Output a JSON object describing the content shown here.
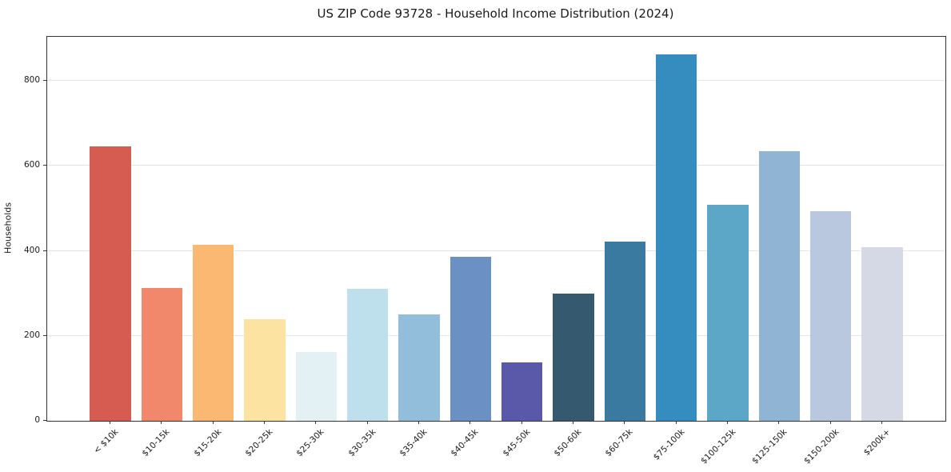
{
  "title": "US ZIP Code 93728 - Household Income Distribution (2024)",
  "chart_data": {
    "type": "bar",
    "title": "US ZIP Code 93728 - Household Income Distribution (2024)",
    "xlabel": "",
    "ylabel": "Households",
    "categories": [
      "< $10k",
      "$10-15k",
      "$15-20k",
      "$20-25k",
      "$25-30k",
      "$30-35k",
      "$35-40k",
      "$40-45k",
      "$45-50k",
      "$50-60k",
      "$60-75k",
      "$75-100k",
      "$100-125k",
      "$125-150k",
      "$150-200k",
      "$200k+"
    ],
    "values": [
      646,
      313,
      415,
      239,
      162,
      311,
      251,
      387,
      137,
      299,
      421,
      862,
      508,
      635,
      494,
      408
    ],
    "bar_colors": [
      "#d65c51",
      "#f1886c",
      "#fab873",
      "#fce3a2",
      "#e4f1f4",
      "#bde0ec",
      "#93bedb",
      "#6b90c4",
      "#5a58a9",
      "#35596f",
      "#3a7aa1",
      "#348cbf",
      "#5ca6c8",
      "#90b4d4",
      "#b9c8df",
      "#d5d8e5"
    ],
    "yticks": [
      0,
      200,
      400,
      600,
      800
    ],
    "ylim": [
      0,
      904
    ],
    "grid": "horizontal",
    "gridline_color": "#e5e5e5",
    "legend": "none",
    "background": "#ffffff",
    "x_tick_rotation_deg": 45
  }
}
